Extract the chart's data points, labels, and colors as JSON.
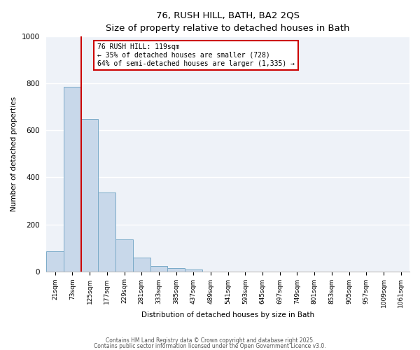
{
  "title": "76, RUSH HILL, BATH, BA2 2QS",
  "subtitle": "Size of property relative to detached houses in Bath",
  "xlabel": "Distribution of detached houses by size in Bath",
  "ylabel": "Number of detached properties",
  "bar_values": [
    85,
    785,
    648,
    335,
    135,
    58,
    22,
    14,
    8,
    0,
    0,
    0,
    0,
    0,
    0,
    0,
    0,
    0,
    0,
    0,
    0
  ],
  "bar_labels": [
    "21sqm",
    "73sqm",
    "125sqm",
    "177sqm",
    "229sqm",
    "281sqm",
    "333sqm",
    "385sqm",
    "437sqm",
    "489sqm",
    "541sqm",
    "593sqm",
    "645sqm",
    "697sqm",
    "749sqm",
    "801sqm",
    "853sqm",
    "905sqm",
    "957sqm",
    "1009sqm",
    "1061sqm"
  ],
  "bar_color": "#c8d8ea",
  "bar_edge_color": "#7aaac8",
  "vline_color": "#cc0000",
  "vline_bin": 2,
  "annotation_text_line1": "76 RUSH HILL: 119sqm",
  "annotation_text_line2": "← 35% of detached houses are smaller (728)",
  "annotation_text_line3": "64% of semi-detached houses are larger (1,335) →",
  "annotation_box_color": "#cc0000",
  "annotation_bg": "#ffffff",
  "ylim": [
    0,
    1000
  ],
  "background_color": "#eef2f8",
  "grid_color": "#ffffff",
  "footer_line1": "Contains HM Land Registry data © Crown copyright and database right 2025.",
  "footer_line2": "Contains public sector information licensed under the Open Government Licence v3.0."
}
